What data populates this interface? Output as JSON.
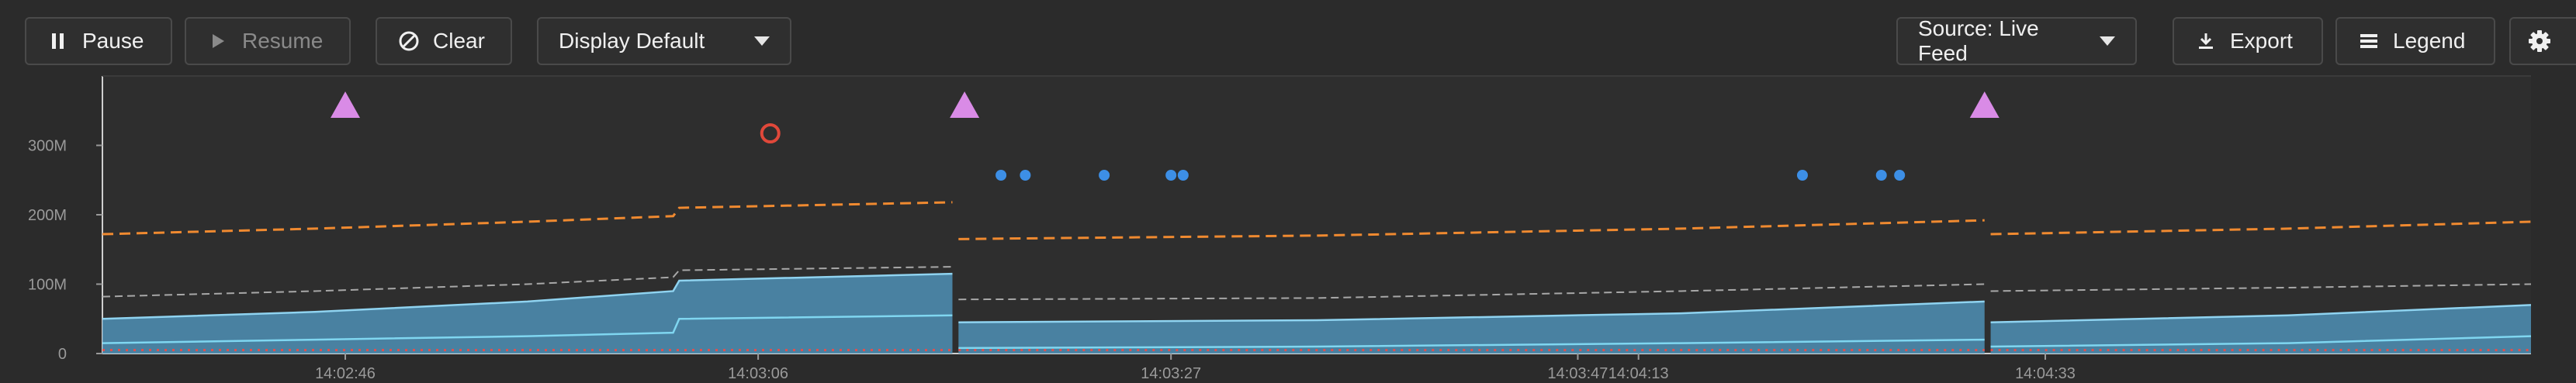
{
  "toolbar": {
    "pause_label": "Pause",
    "resume_label": "Resume",
    "clear_label": "Clear",
    "display_mode": "Display Default",
    "source_label": "Source: Live Feed",
    "export_label": "Export",
    "legend_label": "Legend"
  },
  "icons": {
    "pause": "pause-icon",
    "resume": "play-icon",
    "clear": "ban-icon",
    "export": "download-icon",
    "legend": "list-icon",
    "settings": "gear-icon"
  },
  "colors": {
    "background": "#2b2b2b",
    "area_fill": "#4d8fb5",
    "area_line": "#8fd3f0",
    "inner_line": "#7fd6f0",
    "upper_dash": "#f08a30",
    "mid_dash": "#a8a8a8",
    "baseline_dots": "#e05050",
    "event_triangle": "#d98be6",
    "event_dot": "#3d8fe6",
    "event_ring": "#e0483a"
  },
  "chart_data": {
    "type": "area",
    "y_ticks": [
      "0",
      "100M",
      "200M",
      "300M"
    ],
    "ylim": [
      0,
      400000000
    ],
    "x_ticks": [
      "14:02:46",
      "14:03:06",
      "14:03:27",
      "14:03:47",
      "14:04:13",
      "14:04:33"
    ],
    "x": [
      0,
      35,
      70,
      94,
      95,
      140,
      141,
      200,
      260,
      310,
      311,
      360,
      400
    ],
    "series": [
      {
        "values": [
          50,
          60,
          75,
          90,
          105,
          115,
          45,
          48,
          58,
          75,
          45,
          55,
          70
        ]
      },
      {
        "values": [
          15,
          20,
          25,
          30,
          50,
          55,
          8,
          10,
          15,
          20,
          10,
          15,
          25
        ]
      },
      {
        "values": [
          82,
          90,
          100,
          110,
          120,
          125,
          78,
          80,
          90,
          100,
          90,
          95,
          100
        ]
      },
      {
        "values": [
          172,
          180,
          190,
          198,
          210,
          218,
          165,
          170,
          180,
          192,
          172,
          180,
          190
        ]
      },
      {
        "values": [
          5,
          5,
          5,
          5,
          5,
          5,
          5,
          5,
          5,
          5,
          5,
          5,
          5
        ]
      }
    ],
    "events": {
      "triangles": [
        40,
        142,
        310
      ],
      "rings": [
        110
      ],
      "dots": [
        148,
        152,
        165,
        176,
        178,
        280,
        293,
        296
      ]
    }
  }
}
